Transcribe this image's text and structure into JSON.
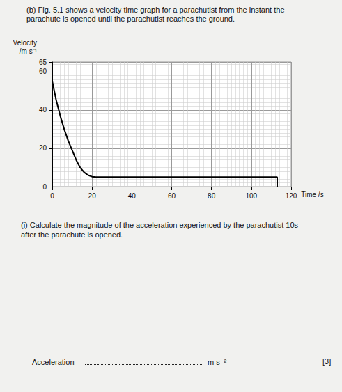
{
  "document": {
    "intro": "(b) Fig. 5.1 shows a velocity time graph for a parachutist from the instant the parachute is opened until the parachutist reaches the ground.",
    "question": "(i) Calculate the magnitude of the acceleration experienced by the parachutist 10s after the parachute is opened.",
    "answer_label": "Acceleration =",
    "answer_unit": "m s⁻²",
    "marks": "[3]"
  },
  "chart_data": {
    "type": "line",
    "x_label": "Time /s",
    "y_label": "Velocity\n/m s⁻¹",
    "x": [
      0,
      2,
      4,
      6,
      8,
      10,
      12,
      14,
      16,
      18,
      20,
      22,
      113,
      113
    ],
    "values": [
      55,
      45,
      37,
      30,
      24,
      19,
      14,
      10,
      7.5,
      6,
      5.2,
      5,
      5,
      0
    ],
    "color": "#000000",
    "xlim": [
      0,
      120
    ],
    "xticks": [
      0,
      20,
      40,
      60,
      80,
      100,
      120
    ],
    "ylim": [
      0,
      65
    ],
    "yticks": [
      0,
      20,
      40,
      60
    ],
    "grid": true
  }
}
